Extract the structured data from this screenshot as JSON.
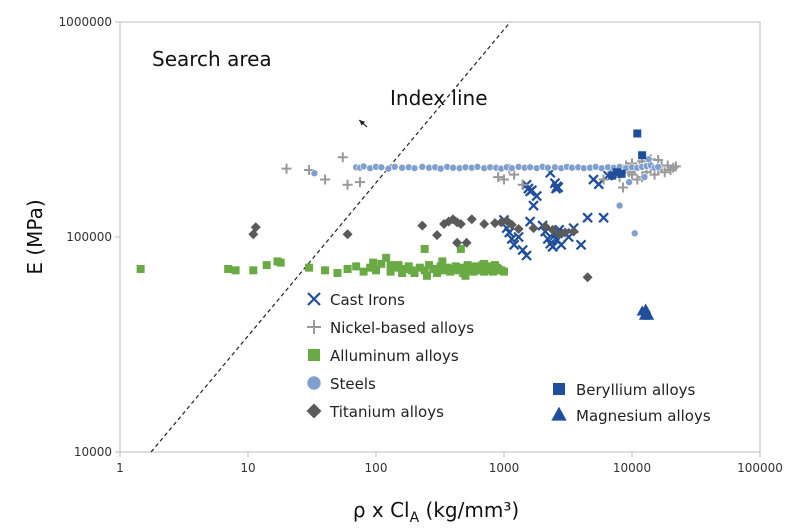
{
  "chart_data": {
    "type": "scatter",
    "title": "",
    "xlabel": "ρ x Cl",
    "xlabel_sub": "A",
    "xlabel_units": " (kg/mm³)",
    "ylabel": "E (MPa)",
    "xscale": "log",
    "yscale": "log",
    "xlim": [
      1,
      100000
    ],
    "ylim": [
      10000,
      1000000
    ],
    "x_ticks": [
      1,
      10,
      100,
      1000,
      10000,
      100000
    ],
    "x_tick_labels": [
      "1",
      "10",
      "100",
      "1000",
      "10000",
      "100000"
    ],
    "y_ticks": [
      10000,
      100000,
      1000000
    ],
    "y_tick_labels": [
      "10000",
      "100000",
      "1000000"
    ],
    "grid": false,
    "annotations": {
      "search_area": "Search area",
      "index_line": "Index line"
    },
    "index_line": {
      "x": [
        1.75,
        1120
      ],
      "y": [
        10000,
        1000000
      ]
    },
    "index_arrow": {
      "from": [
        85,
        325000
      ],
      "to": [
        74,
        350000
      ]
    },
    "series": [
      {
        "name": "Cast Irons",
        "marker": "x",
        "color": "#1f4e9c",
        "x": [
          1000,
          1050,
          1100,
          1150,
          1200,
          1300,
          1400,
          1500,
          1600,
          1700,
          1800,
          2000,
          2100,
          2200,
          2300,
          2400,
          2500,
          2600,
          2700,
          2800,
          3000,
          3200,
          3500,
          4000,
          4500,
          5000,
          5500,
          6000,
          6500,
          7000,
          1500,
          1550,
          1600,
          1650,
          2300,
          2500,
          2550,
          2600,
          2650
        ],
        "y": [
          120000,
          110000,
          105000,
          98000,
          92000,
          100000,
          87000,
          82000,
          118000,
          140000,
          155000,
          113000,
          106000,
          98000,
          93000,
          90000,
          102000,
          97000,
          108000,
          92000,
          104000,
          100000,
          110000,
          92000,
          123000,
          185000,
          176000,
          123000,
          193000,
          200000,
          175000,
          168000,
          163000,
          165000,
          199000,
          178000,
          168000,
          172000,
          170000
        ]
      },
      {
        "name": "Nickel-based alloys",
        "marker": "+",
        "color": "#999999",
        "x": [
          20,
          30,
          40,
          55,
          60,
          75,
          900,
          1000,
          1100,
          1200,
          1400,
          6000,
          7000,
          8000,
          8500,
          9000,
          9500,
          10000,
          10500,
          11000,
          11500,
          12000,
          13000,
          14000,
          15000,
          16000,
          17000,
          18000,
          19000,
          20000,
          21000,
          22000,
          9000,
          10000,
          12000,
          14000,
          16000
        ],
        "y": [
          208000,
          205000,
          185000,
          235000,
          175000,
          180000,
          190000,
          185000,
          208000,
          195000,
          175000,
          185000,
          200000,
          190000,
          170000,
          210000,
          200000,
          195000,
          205000,
          185000,
          215000,
          190000,
          200000,
          210000,
          195000,
          205000,
          215000,
          200000,
          215000,
          205000,
          210000,
          213000,
          215000,
          220000,
          225000,
          230000,
          228000
        ]
      },
      {
        "name": "Alluminum alloys",
        "marker": "square",
        "color": "#6aaa45",
        "x": [
          1.45,
          7,
          8,
          11,
          14,
          17,
          18,
          30,
          40,
          50,
          60,
          70,
          80,
          90,
          100,
          110,
          120,
          130,
          140,
          150,
          160,
          170,
          180,
          190,
          200,
          220,
          240,
          260,
          280,
          300,
          320,
          340,
          360,
          380,
          400,
          420,
          440,
          460,
          480,
          500,
          520,
          540,
          560,
          580,
          600,
          620,
          640,
          660,
          680,
          700,
          720,
          740,
          760,
          780,
          800,
          820,
          840,
          860,
          880,
          900,
          950,
          1000,
          240,
          330,
          460,
          95,
          130,
          200,
          250,
          500,
          700,
          850
        ],
        "y": [
          71000,
          71000,
          70000,
          70000,
          74000,
          77000,
          76000,
          72000,
          70000,
          68000,
          71000,
          73000,
          69000,
          72000,
          70000,
          75000,
          80000,
          69000,
          72000,
          74000,
          68000,
          71000,
          73000,
          70000,
          69000,
          72000,
          70000,
          74000,
          71000,
          68000,
          73000,
          70000,
          72000,
          69000,
          71000,
          73000,
          70000,
          72000,
          68000,
          71000,
          74000,
          70000,
          72000,
          69000,
          73000,
          71000,
          70000,
          72000,
          74000,
          69000,
          71000,
          73000,
          70000,
          72000,
          71000,
          69000,
          73000,
          70000,
          72000,
          71000,
          70000,
          69000,
          88000,
          77000,
          88000,
          76000,
          74000,
          68000,
          66000,
          66000,
          75000,
          74000
        ]
      },
      {
        "name": "Steels",
        "marker": "circle",
        "color": "#7f9fcf",
        "x": [
          33,
          70,
          75,
          80,
          90,
          100,
          110,
          125,
          140,
          160,
          180,
          200,
          230,
          260,
          290,
          320,
          360,
          400,
          450,
          500,
          560,
          620,
          700,
          780,
          870,
          950,
          1050,
          1150,
          1300,
          1450,
          1600,
          1800,
          2000,
          2200,
          2500,
          2800,
          3100,
          3400,
          3800,
          4200,
          4700,
          5200,
          5800,
          6500,
          7200,
          8000,
          9000,
          10000,
          11000,
          12000,
          13000,
          14000,
          15000,
          16000,
          8000,
          10500,
          12500,
          9500,
          13500
        ],
        "y": [
          198000,
          211000,
          210000,
          213000,
          209000,
          212000,
          211000,
          208000,
          212000,
          210000,
          211000,
          209000,
          212000,
          210000,
          211000,
          208000,
          212000,
          210000,
          209000,
          211000,
          210000,
          212000,
          209000,
          211000,
          210000,
          208000,
          211000,
          209000,
          212000,
          210000,
          211000,
          209000,
          212000,
          210000,
          211000,
          209000,
          212000,
          210000,
          211000,
          209000,
          210000,
          212000,
          209000,
          211000,
          210000,
          212000,
          209000,
          211000,
          210000,
          212000,
          214000,
          216000,
          210000,
          212000,
          140000,
          104000,
          190000,
          180000,
          230000
        ]
      },
      {
        "name": "Titanium alloys",
        "marker": "diamond",
        "color": "#5a5a5a",
        "x": [
          11,
          11.5,
          60,
          230,
          340,
          370,
          400,
          430,
          460,
          510,
          560,
          700,
          850,
          950,
          1050,
          1150,
          1300,
          1700,
          2100,
          2400,
          2700,
          3000,
          3500,
          4500,
          430,
          300
        ],
        "y": [
          103000,
          111000,
          103000,
          113000,
          115000,
          118000,
          121000,
          117000,
          115000,
          94000,
          121000,
          115000,
          116000,
          117000,
          119000,
          114000,
          109000,
          110000,
          112000,
          108000,
          103000,
          105000,
          106000,
          65000,
          94000,
          102000
        ]
      },
      {
        "name": "Beryllium alloys",
        "marker": "square",
        "color": "#1f4e9c",
        "x": [
          7000,
          7600,
          8300,
          11000,
          12000
        ],
        "y": [
          193000,
          200000,
          197000,
          303000,
          240000
        ]
      },
      {
        "name": "Magnesium alloys",
        "marker": "triangle",
        "color": "#1f4e9c",
        "x": [
          12000,
          12500,
          13000,
          13500,
          12800
        ],
        "y": [
          45000,
          43000,
          44000,
          43000,
          46000
        ]
      }
    ],
    "legend_left": [
      "Cast Irons",
      "Nickel-based alloys",
      "Alluminum alloys",
      "Steels",
      "Titanium alloys"
    ],
    "legend_right": [
      "Beryllium alloys",
      "Magnesium alloys"
    ]
  }
}
